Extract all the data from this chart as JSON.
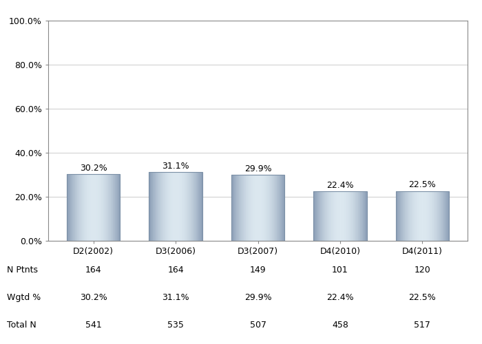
{
  "categories": [
    "D2(2002)",
    "D3(2006)",
    "D3(2007)",
    "D4(2010)",
    "D4(2011)"
  ],
  "values": [
    30.2,
    31.1,
    29.9,
    22.4,
    22.5
  ],
  "labels": [
    "30.2%",
    "31.1%",
    "29.9%",
    "22.4%",
    "22.5%"
  ],
  "n_ptnts": [
    "164",
    "164",
    "149",
    "101",
    "120"
  ],
  "wgtd_pct": [
    "30.2%",
    "31.1%",
    "29.9%",
    "22.4%",
    "22.5%"
  ],
  "total_n": [
    "541",
    "535",
    "507",
    "458",
    "517"
  ],
  "ylim": [
    0,
    100
  ],
  "yticks": [
    0,
    20,
    40,
    60,
    80,
    100
  ],
  "ytick_labels": [
    "0.0%",
    "20.0%",
    "40.0%",
    "60.0%",
    "80.0%",
    "100.0%"
  ],
  "background_color": "#ffffff",
  "grid_color": "#cccccc",
  "border_color": "#888888",
  "label_fontsize": 9,
  "tick_fontsize": 9,
  "table_fontsize": 9,
  "bar_width": 0.65,
  "row_labels": [
    "N Ptnts",
    "Wgtd %",
    "Total N"
  ]
}
